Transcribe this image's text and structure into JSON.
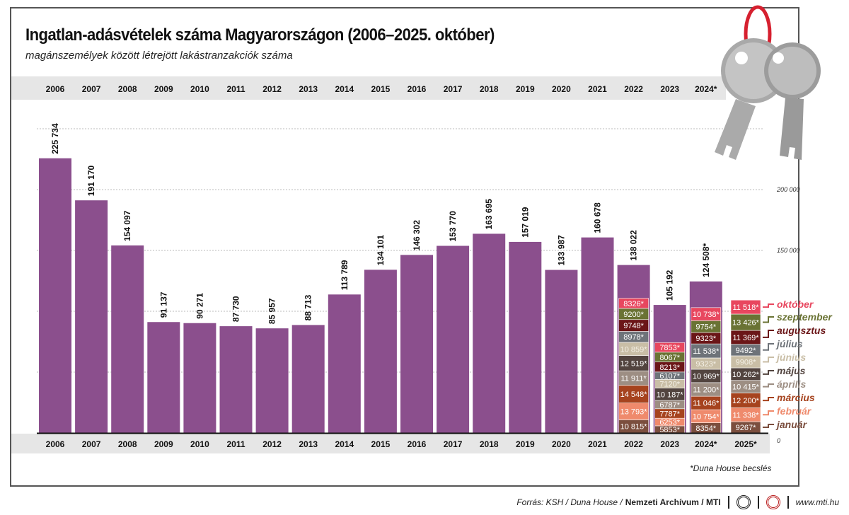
{
  "title": "Ingatlan-adásvételek száma Magyarországon (2006–2025. október)",
  "subtitle": "magánszemélyek között létrejött lakástranzakciók száma",
  "note": "*Duna House becslés",
  "footer": {
    "source": "Forrás: KSH / Duna House /",
    "archive": "Nemzeti Archívum / MTI",
    "site": "www.mti.hu"
  },
  "chart_data": {
    "type": "bar",
    "ylim": [
      0,
      260000
    ],
    "y_tick_labels": [
      {
        "value": 200000,
        "label": "200 000"
      },
      {
        "value": 150000,
        "label": "150 000"
      },
      {
        "value": 0,
        "label": "0"
      }
    ],
    "gridlines": [
      250000,
      200000,
      150000,
      100000,
      50000
    ],
    "bar_color": "#8b4f8d",
    "categories_top": [
      "2006",
      "2007",
      "2008",
      "2009",
      "2010",
      "2011",
      "2012",
      "2013",
      "2014",
      "2015",
      "2016",
      "2017",
      "2018",
      "2019",
      "2020",
      "2021",
      "2022",
      "2023",
      "2024*"
    ],
    "categories": [
      "2006",
      "2007",
      "2008",
      "2009",
      "2010",
      "2011",
      "2012",
      "2013",
      "2014",
      "2015",
      "2016",
      "2017",
      "2018",
      "2019",
      "2020",
      "2021",
      "2022",
      "2023",
      "2024*",
      "2025*"
    ],
    "values": [
      225734,
      191170,
      154097,
      91137,
      90271,
      87730,
      85957,
      88713,
      113789,
      134101,
      146302,
      153770,
      163695,
      157019,
      133987,
      160678,
      138022,
      105192,
      124508,
      null
    ],
    "value_labels": [
      "225 734",
      "191 170",
      "154 097",
      "91 137",
      "90 271",
      "87 730",
      "85 957",
      "88 713",
      "113 789",
      "134 101",
      "146 302",
      "153 770",
      "163 695",
      "157 019",
      "133 987",
      "160 678",
      "138 022",
      "105 192",
      "124 508*",
      ""
    ],
    "months": [
      {
        "name": "január",
        "color": "#7b4e3e"
      },
      {
        "name": "február",
        "color": "#ef8a6c"
      },
      {
        "name": "március",
        "color": "#a6431e"
      },
      {
        "name": "április",
        "color": "#9d8e83"
      },
      {
        "name": "május",
        "color": "#52443f"
      },
      {
        "name": "június",
        "color": "#c9bea6"
      },
      {
        "name": "július",
        "color": "#6e7379"
      },
      {
        "name": "augusztus",
        "color": "#6b1618"
      },
      {
        "name": "szeptember",
        "color": "#6a7334"
      },
      {
        "name": "október",
        "color": "#e8475f"
      }
    ],
    "monthly": {
      "2022": {
        "values": [
          10815,
          13793,
          14548,
          11911,
          12519,
          10859,
          8978,
          9748,
          9200,
          8326
        ],
        "labels": [
          "10 815*",
          "13 793*",
          "14 548*",
          "11 911*",
          "12 519*",
          "10 859*",
          "8978*",
          "9748*",
          "9200*",
          "8326*"
        ]
      },
      "2023": {
        "values": [
          5853,
          6253,
          7787,
          6787,
          10187,
          7120,
          6107,
          8213,
          8067,
          7853
        ],
        "labels": [
          "5853*",
          "6253*",
          "7787*",
          "6787*",
          "10 187*",
          "7120*",
          "6107*",
          "8213*",
          "8067*",
          "7853*"
        ]
      },
      "2024*": {
        "values": [
          8354,
          10754,
          11046,
          11200,
          10969,
          9323,
          11538,
          9323,
          9754,
          10738
        ],
        "labels": [
          "8354*",
          "10 754*",
          "11 046*",
          "11 200*",
          "10 969*",
          "9323*",
          "11 538*",
          "9323*",
          "9754*",
          "10 738*"
        ]
      },
      "2025*": {
        "values": [
          9267,
          11338,
          12200,
          10415,
          10262,
          9908,
          9492,
          11369,
          13426,
          11518
        ],
        "labels": [
          "9267*",
          "11 338*",
          "12 200*",
          "10 415*",
          "10 262*",
          "9908*",
          "9492*",
          "11 369*",
          "13 426*",
          "11 518*"
        ]
      }
    }
  }
}
